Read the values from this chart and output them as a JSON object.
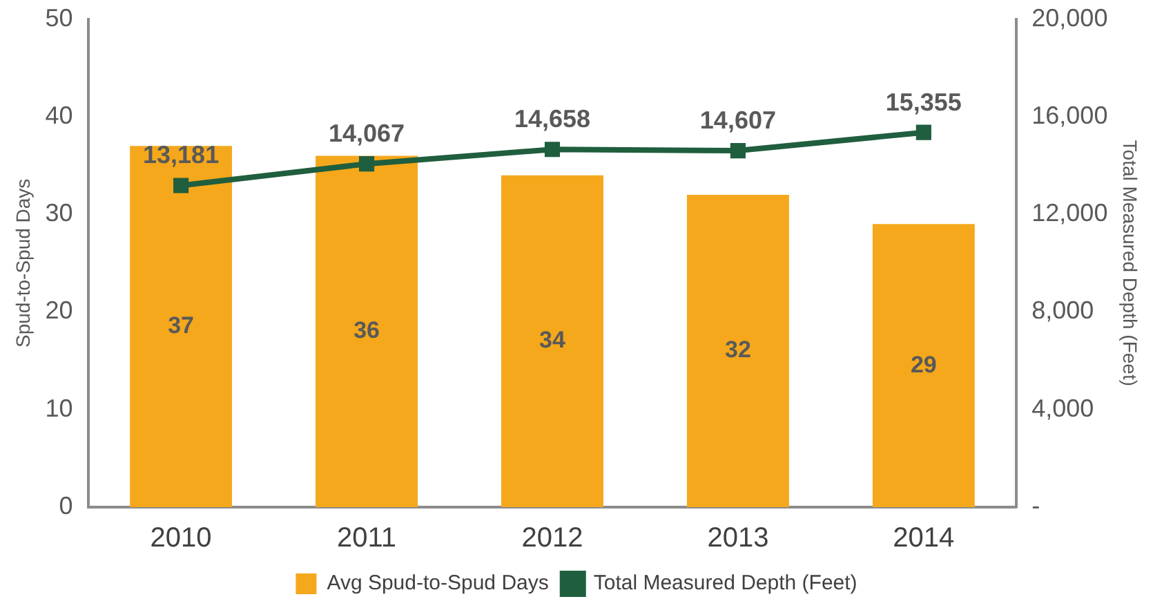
{
  "chart_data": {
    "type": "bar",
    "categories": [
      "2010",
      "2011",
      "2012",
      "2013",
      "2014"
    ],
    "series": [
      {
        "name": "Avg Spud-to-Spud Days",
        "color": "#f5a81c",
        "values": [
          37,
          36,
          34,
          32,
          29
        ]
      },
      {
        "name": "Total Measured Depth (Feet)",
        "type": "line",
        "axis": "y2",
        "color": "#1f5e3e",
        "values": [
          13181,
          14067,
          14658,
          14607,
          15355
        ],
        "value_labels": [
          "13,181",
          "14,067",
          "14,658",
          "14,607",
          "15,355"
        ]
      }
    ],
    "ylabel": "Spud-to-Spud Days",
    "y2label": "Total Measured Depth (Feet)",
    "ylim": [
      0,
      50
    ],
    "yticks": [
      0,
      10,
      20,
      30,
      40,
      50
    ],
    "y2lim": [
      0,
      20000
    ],
    "y2ticks": [
      {
        "value": 0,
        "label": "-"
      },
      {
        "value": 4000,
        "label": "4,000"
      },
      {
        "value": 8000,
        "label": "8,000"
      },
      {
        "value": 12000,
        "label": "12,000"
      },
      {
        "value": 16000,
        "label": "16,000"
      },
      {
        "value": 20000,
        "label": "20,000"
      }
    ],
    "grid": false,
    "legend": "bottom",
    "marker": "square",
    "line_style": "solid",
    "data_labels": true
  }
}
